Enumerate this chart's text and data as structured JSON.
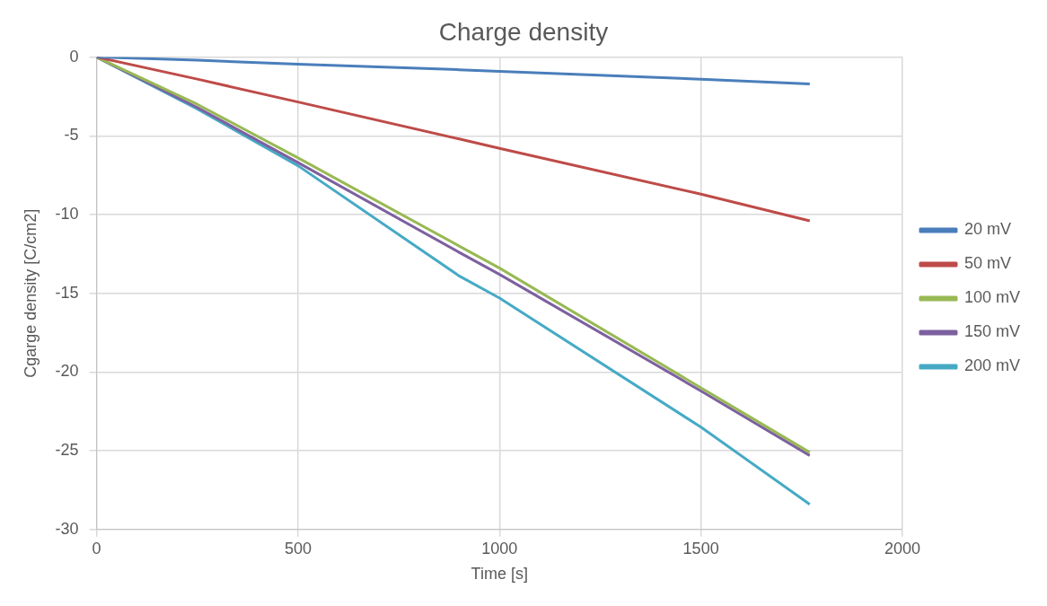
{
  "chart_data": {
    "type": "line",
    "title": "Charge density",
    "xlabel": "Time [s]",
    "ylabel": "Cgarge density [C/cm2]",
    "xlim": [
      0,
      2000
    ],
    "xticks": [
      0,
      500,
      1000,
      1500,
      2000
    ],
    "ylim": [
      -30,
      0
    ],
    "yticks": [
      -30,
      -25,
      -20,
      -15,
      -10,
      -5,
      0
    ],
    "grid": true,
    "legend": "right",
    "marker": "none",
    "line_style": "solid",
    "x": [
      0,
      250,
      500,
      900,
      1000,
      1500,
      1770
    ],
    "series": [
      {
        "name": "20 mV",
        "color": "#4a7ebb",
        "values": [
          0,
          -0.2,
          -0.45,
          -0.8,
          -0.9,
          -1.4,
          -1.7
        ]
      },
      {
        "name": "50 mV",
        "color": "#be4b48",
        "values": [
          0,
          -1.4,
          -2.85,
          -5.2,
          -5.8,
          -8.7,
          -10.4
        ]
      },
      {
        "name": "100 mV",
        "color": "#98b954",
        "values": [
          0,
          -3.0,
          -6.4,
          -12.0,
          -13.4,
          -21.0,
          -25.1
        ]
      },
      {
        "name": "150 mV",
        "color": "#7d60a0",
        "values": [
          0,
          -3.2,
          -6.7,
          -12.4,
          -13.8,
          -21.2,
          -25.3
        ]
      },
      {
        "name": "200 mV",
        "color": "#46aac5",
        "values": [
          0,
          -3.3,
          -6.9,
          -13.9,
          -15.3,
          -23.5,
          -28.4
        ]
      }
    ]
  }
}
